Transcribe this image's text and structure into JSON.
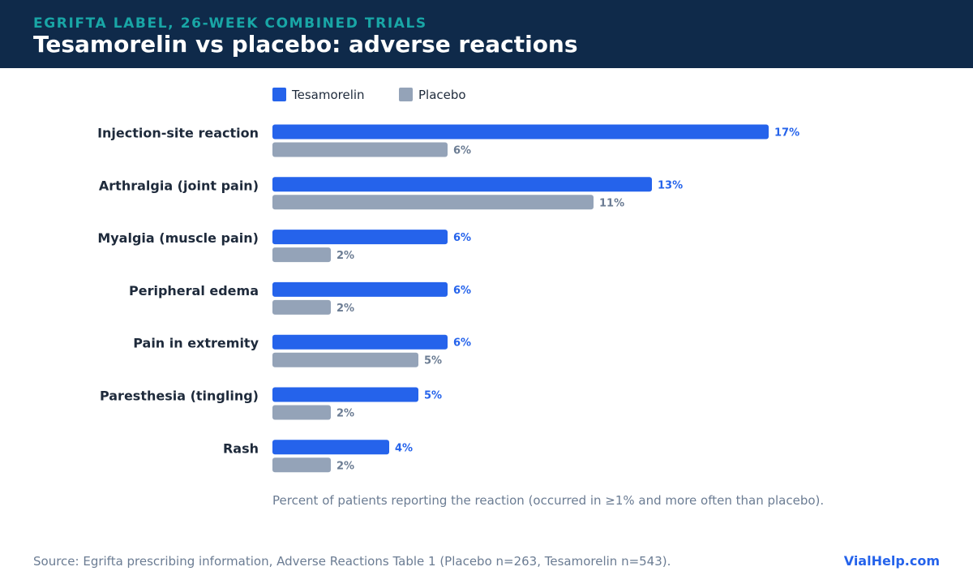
{
  "header": {
    "kicker": "EGRIFTA LABEL, 26-WEEK COMBINED TRIALS",
    "title": "Tesamorelin vs placebo: adverse reactions"
  },
  "chart_data": {
    "type": "bar",
    "orientation": "horizontal",
    "categories": [
      "Injection-site reaction",
      "Arthralgia (joint pain)",
      "Myalgia (muscle pain)",
      "Peripheral edema",
      "Pain in extremity",
      "Paresthesia (tingling)",
      "Rash"
    ],
    "series": [
      {
        "name": "Tesamorelin",
        "color": "#2563eb",
        "values": [
          17,
          13,
          6,
          6,
          6,
          5,
          4
        ]
      },
      {
        "name": "Placebo",
        "color": "#94a3b8",
        "values": [
          6,
          11,
          2,
          2,
          5,
          2,
          2
        ]
      }
    ],
    "value_suffix": "%",
    "xlim": [
      0,
      17
    ],
    "legend": "top-left",
    "grid": false,
    "note": "Percent of patients reporting the reaction (occurred in ≥1% and more often than placebo)."
  },
  "footer": {
    "source": "Source: Egrifta prescribing information, Adverse Reactions Table 1 (Placebo n=263, Tesamorelin n=543).",
    "brand": "VialHelp.com"
  },
  "colors": {
    "header_bg": "#0f2a4a",
    "kicker": "#19a6a6",
    "category_text": "#1e2a3b",
    "muted_text": "#6b7c93"
  }
}
